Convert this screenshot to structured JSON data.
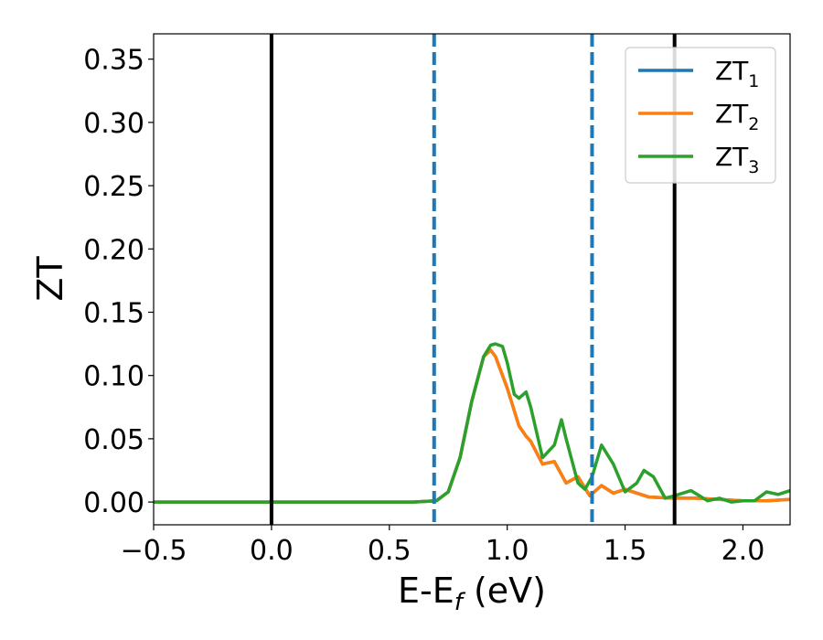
{
  "chart_data": {
    "type": "line",
    "xlabel_main": "E-E",
    "xlabel_sub": "f",
    "xlabel_unit": " (eV)",
    "ylabel": "ZT",
    "xlim": [
      -0.5,
      2.2
    ],
    "ylim": [
      -0.018,
      0.37
    ],
    "grid": false,
    "legend_position": "top-right",
    "xticks": [
      -0.5,
      0.0,
      0.5,
      1.0,
      1.5,
      2.0
    ],
    "xtick_labels": [
      "−0.5",
      "0.0",
      "0.5",
      "1.0",
      "1.5",
      "2.0"
    ],
    "yticks": [
      0.0,
      0.05,
      0.1,
      0.15,
      0.2,
      0.25,
      0.3,
      0.35
    ],
    "ytick_labels": [
      "0.00",
      "0.05",
      "0.10",
      "0.15",
      "0.20",
      "0.25",
      "0.30",
      "0.35"
    ],
    "vlines": [
      {
        "x": 0.0,
        "style": "solid",
        "color": "#000000"
      },
      {
        "x": 0.69,
        "style": "dashed",
        "color": "#1f77b4"
      },
      {
        "x": 1.36,
        "style": "dashed",
        "color": "#1f77b4"
      },
      {
        "x": 1.71,
        "style": "solid",
        "color": "#000000"
      }
    ],
    "series": [
      {
        "name": "ZT",
        "sub": "1",
        "color": "#1f77b4",
        "x": [
          -0.5,
          0.6,
          0.7,
          0.75,
          0.8,
          0.85,
          0.9,
          0.93,
          0.95,
          1.0,
          1.05,
          1.08,
          1.1,
          1.15,
          1.2,
          1.25,
          1.3,
          1.35,
          1.4,
          1.45,
          1.5,
          1.6,
          1.7,
          1.8,
          1.9,
          2.0,
          2.1,
          2.2
        ],
        "y": [
          0.0,
          0.0,
          0.001,
          0.008,
          0.035,
          0.08,
          0.115,
          0.12,
          0.115,
          0.09,
          0.06,
          0.052,
          0.048,
          0.03,
          0.032,
          0.015,
          0.02,
          0.005,
          0.013,
          0.007,
          0.01,
          0.004,
          0.003,
          0.003,
          0.002,
          0.001,
          0.001,
          0.002
        ]
      },
      {
        "name": "ZT",
        "sub": "2",
        "color": "#ff7f0e",
        "x": [
          -0.5,
          0.6,
          0.7,
          0.75,
          0.8,
          0.85,
          0.9,
          0.93,
          0.95,
          1.0,
          1.05,
          1.08,
          1.1,
          1.15,
          1.2,
          1.25,
          1.3,
          1.35,
          1.4,
          1.45,
          1.5,
          1.6,
          1.7,
          1.8,
          1.9,
          2.0,
          2.1,
          2.2
        ],
        "y": [
          0.0,
          0.0,
          0.001,
          0.008,
          0.035,
          0.08,
          0.115,
          0.12,
          0.115,
          0.09,
          0.06,
          0.052,
          0.048,
          0.03,
          0.032,
          0.015,
          0.02,
          0.005,
          0.013,
          0.007,
          0.01,
          0.004,
          0.003,
          0.003,
          0.002,
          0.001,
          0.001,
          0.002
        ]
      },
      {
        "name": "ZT",
        "sub": "3",
        "color": "#2ca02c",
        "x": [
          -0.5,
          0.6,
          0.7,
          0.75,
          0.8,
          0.85,
          0.9,
          0.93,
          0.95,
          0.98,
          1.0,
          1.03,
          1.05,
          1.08,
          1.1,
          1.15,
          1.2,
          1.23,
          1.25,
          1.3,
          1.33,
          1.36,
          1.4,
          1.45,
          1.5,
          1.55,
          1.58,
          1.62,
          1.67,
          1.71,
          1.78,
          1.85,
          1.9,
          1.95,
          2.0,
          2.05,
          2.1,
          2.15,
          2.2
        ],
        "y": [
          0.0,
          0.0,
          0.001,
          0.008,
          0.035,
          0.08,
          0.115,
          0.124,
          0.125,
          0.123,
          0.11,
          0.085,
          0.082,
          0.087,
          0.075,
          0.035,
          0.045,
          0.065,
          0.05,
          0.015,
          0.01,
          0.02,
          0.045,
          0.03,
          0.008,
          0.015,
          0.025,
          0.02,
          0.003,
          0.005,
          0.009,
          0.001,
          0.003,
          0.0,
          0.001,
          0.001,
          0.008,
          0.006,
          0.009
        ]
      }
    ]
  }
}
